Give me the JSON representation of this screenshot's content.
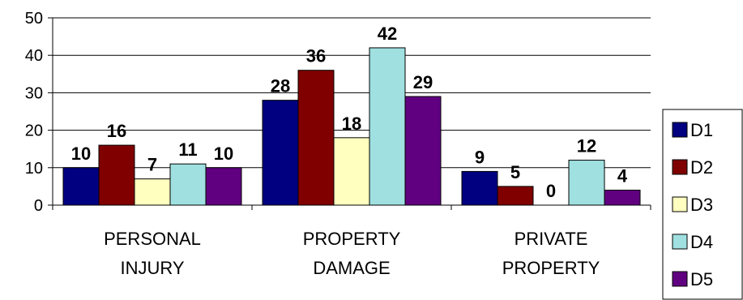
{
  "chart_data": {
    "type": "bar",
    "title": "",
    "xlabel": "",
    "ylabel": "",
    "ylim": [
      0,
      50
    ],
    "yticks": [
      0,
      10,
      20,
      30,
      40,
      50
    ],
    "grid": true,
    "legend_position": "right",
    "categories": [
      [
        "PERSONAL",
        "INJURY"
      ],
      [
        "PROPERTY",
        "DAMAGE"
      ],
      [
        "PRIVATE",
        "PROPERTY"
      ]
    ],
    "series": [
      {
        "name": "D1",
        "color": "#000080",
        "values": [
          10,
          28,
          9
        ]
      },
      {
        "name": "D2",
        "color": "#800000",
        "values": [
          16,
          36,
          5
        ]
      },
      {
        "name": "D3",
        "color": "#FFFFC0",
        "values": [
          7,
          18,
          0
        ]
      },
      {
        "name": "D4",
        "color": "#A0E0E0",
        "values": [
          11,
          42,
          12
        ]
      },
      {
        "name": "D5",
        "color": "#600080",
        "values": [
          10,
          29,
          4
        ]
      }
    ]
  }
}
